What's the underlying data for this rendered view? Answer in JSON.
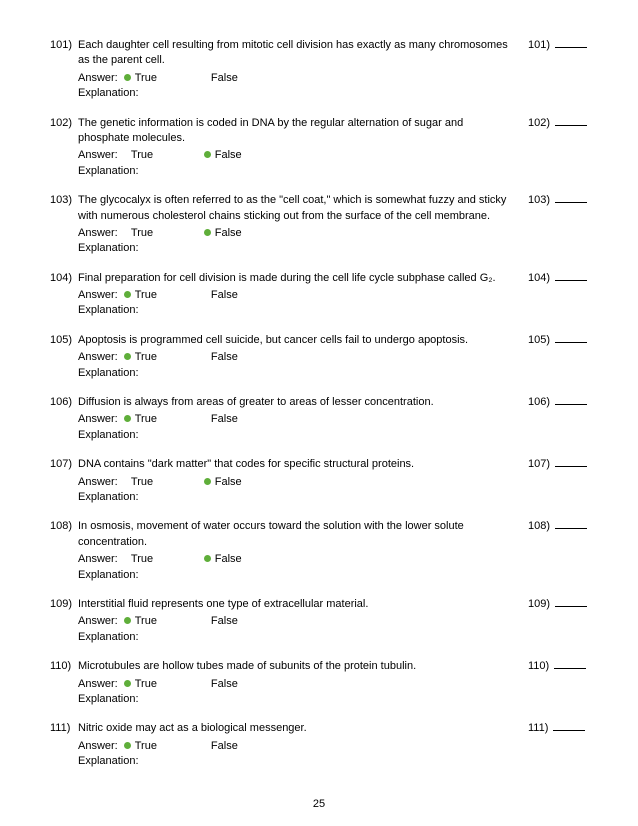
{
  "labels": {
    "answer": "Answer:",
    "explanation": "Explanation:",
    "true_": "True",
    "false_": "False"
  },
  "page_number": "25",
  "questions": [
    {
      "num": "101)",
      "text": "Each daughter cell resulting from mitotic cell division has exactly as many chromosomes as the parent cell.",
      "answer": "True"
    },
    {
      "num": "102)",
      "text": "The genetic information is coded in DNA by the regular alternation of sugar and phosphate molecules.",
      "answer": "False"
    },
    {
      "num": "103)",
      "text": "The glycocalyx is often referred to as the \"cell coat,\" which is somewhat fuzzy and sticky with numerous cholesterol chains sticking out from the surface of the cell membrane.",
      "answer": "False"
    },
    {
      "num": "104)",
      "text": "Final preparation for cell division is made during the cell life cycle subphase called G₂.",
      "answer": "True"
    },
    {
      "num": "105)",
      "text": "Apoptosis is programmed cell suicide, but cancer cells fail to undergo apoptosis.",
      "answer": "True"
    },
    {
      "num": "106)",
      "text": "Diffusion is always from areas of greater to areas of lesser concentration.",
      "answer": "True"
    },
    {
      "num": "107)",
      "text": "DNA contains \"dark matter\" that codes for specific structural proteins.",
      "answer": "False"
    },
    {
      "num": "108)",
      "text": "In osmosis, movement of water occurs toward the solution with the lower solute concentration.",
      "answer": "False"
    },
    {
      "num": "109)",
      "text": "Interstitial fluid represents one type of extracellular material.",
      "answer": "True"
    },
    {
      "num": "110)",
      "text": "Microtubules are hollow tubes made of subunits of the protein tubulin.",
      "answer": "True"
    },
    {
      "num": "111)",
      "text": "Nitric oxide may act as a biological messenger.",
      "answer": "True"
    }
  ]
}
